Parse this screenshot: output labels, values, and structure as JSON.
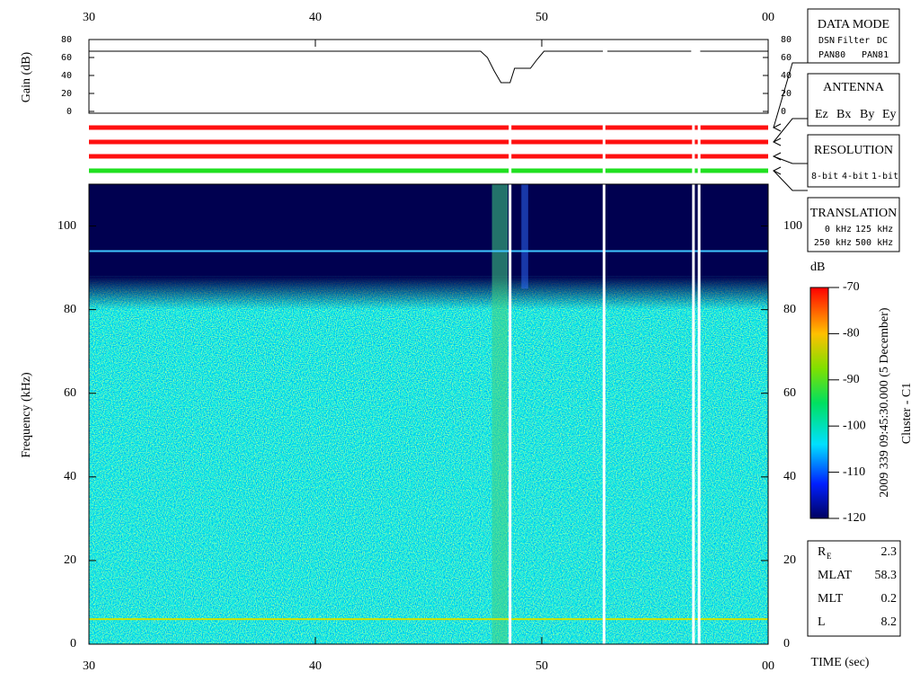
{
  "chart_data": [
    {
      "type": "line",
      "y_label": "Gain (dB)",
      "color": "#000000",
      "x": [
        30,
        47.3,
        47.6,
        47.9,
        48.2,
        48.6,
        48.8,
        49.5,
        49.8,
        50.1,
        52.7,
        52.8,
        52.9,
        56.6,
        56.8,
        57.0,
        60
      ],
      "values": [
        67,
        67,
        60,
        45,
        32,
        32,
        48,
        48,
        58,
        67,
        67,
        null,
        67,
        67,
        null,
        67,
        67
      ],
      "xlim": [
        30,
        60
      ],
      "xticks": [
        30,
        40,
        50,
        {
          "value": 60,
          "label": "00"
        }
      ],
      "ylim": [
        0,
        80
      ],
      "yticks": [
        0,
        20,
        40,
        60,
        80
      ]
    },
    {
      "type": "spectrogram",
      "y_label": "Frequency (kHz)",
      "x_label": "TIME (sec)",
      "xlim": [
        30,
        60
      ],
      "xticks": [
        30,
        40,
        50,
        {
          "value": 60,
          "label": "00"
        }
      ],
      "ylim": [
        0,
        110
      ],
      "yticks": [
        0,
        20,
        40,
        60,
        80,
        100
      ],
      "data_gaps": [
        48.6,
        52.75,
        56.7,
        56.95
      ],
      "colorbar": {
        "label": "dB",
        "lim": [
          -120,
          -70
        ],
        "ticks": [
          -120,
          -110,
          -100,
          -90,
          -80,
          -70
        ]
      }
    }
  ],
  "data_mode": {
    "title": "DATA MODE",
    "items": [
      {
        "text": "DSN",
        "color": "#e00000"
      },
      {
        "text": "Filter",
        "color": "#00c000"
      },
      {
        "text": "DC",
        "color": "#0000e0"
      },
      {
        "text": "PAN80",
        "color": "#000000"
      },
      {
        "text": "PAN81",
        "color": "#00b0c0"
      }
    ]
  },
  "antenna": {
    "title": "ANTENNA",
    "items": [
      {
        "text": "Ez",
        "color": "#e00000"
      },
      {
        "text": "Bx",
        "color": "#00c000"
      },
      {
        "text": "By",
        "color": "#0000e0"
      },
      {
        "text": "Ey",
        "color": "#000000"
      }
    ]
  },
  "resolution": {
    "title": "RESOLUTION",
    "items": [
      {
        "text": "8-bit",
        "color": "#e00000"
      },
      {
        "text": "4-bit",
        "color": "#00c000"
      },
      {
        "text": "1-bit",
        "color": "#0000e0"
      }
    ]
  },
  "translation": {
    "title": "TRANSLATION",
    "items": [
      {
        "text": "0 kHz",
        "color": "#e00000"
      },
      {
        "text": "125 kHz",
        "color": "#00c000"
      },
      {
        "text": "250 kHz",
        "color": "#0000e0"
      },
      {
        "text": "500 kHz",
        "color": "#000000"
      }
    ]
  },
  "timestamp": "2009 339 09:45:30.000 (5 December)",
  "spacecraft": "Cluster - C1",
  "orbit": [
    {
      "label": "R",
      "sub": "E",
      "value": 2.3
    },
    {
      "label": "MLAT",
      "value": 58.3
    },
    {
      "label": "MLT",
      "value": 0.2
    },
    {
      "label": "L",
      "value": 8.2
    }
  ]
}
